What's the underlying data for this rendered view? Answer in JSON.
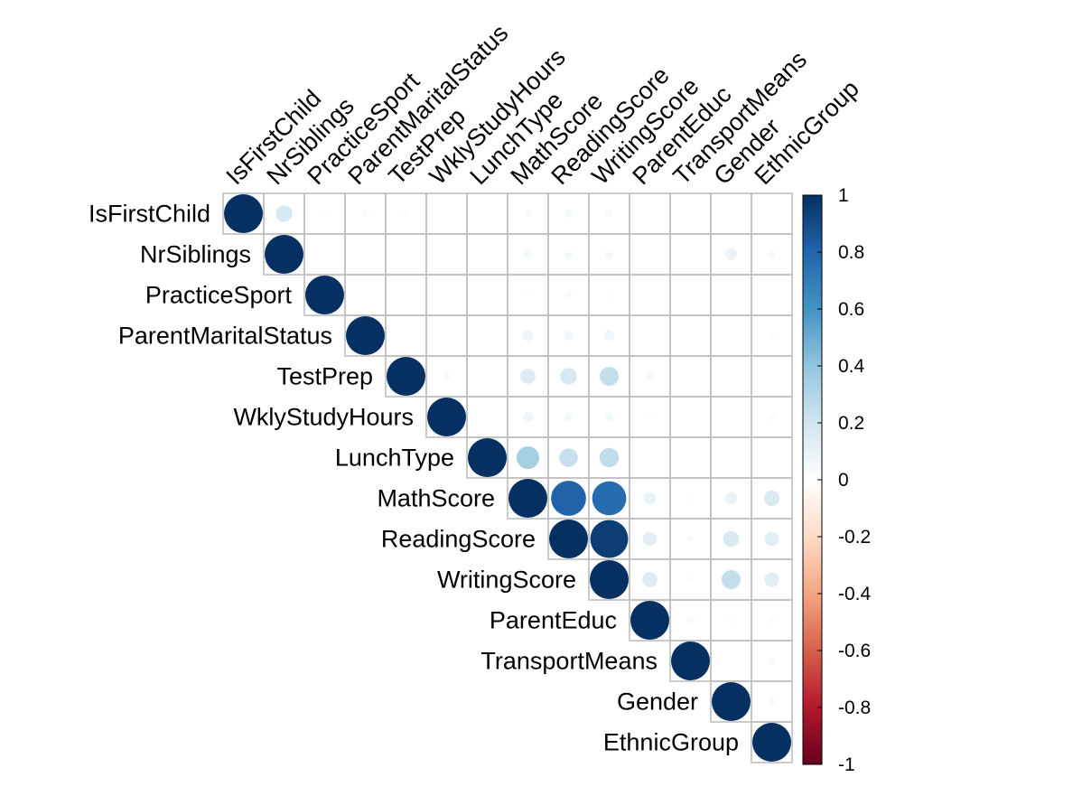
{
  "chart_data": {
    "type": "heatmap",
    "subtype": "correlation-circle-upper",
    "variables": [
      "IsFirstChild",
      "NrSiblings",
      "PracticeSport",
      "ParentMaritalStatus",
      "TestPrep",
      "WklyStudyHours",
      "LunchType",
      "MathScore",
      "ReadingScore",
      "WritingScore",
      "ParentEduc",
      "TransportMeans",
      "Gender",
      "EthnicGroup"
    ],
    "matrix": [
      [
        1,
        0.18,
        0.02,
        0.04,
        0.02,
        0.0,
        0.0,
        0.04,
        0.05,
        0.04,
        0.0,
        0.0,
        0.0,
        0.0
      ],
      [
        0.18,
        1,
        0.0,
        0.0,
        0.0,
        0.01,
        0.0,
        0.05,
        0.05,
        0.05,
        0.0,
        0.01,
        0.09,
        0.04
      ],
      [
        0.02,
        0.0,
        1,
        0.0,
        0.0,
        0.0,
        0.01,
        0.02,
        0.03,
        0.02,
        0.0,
        0.0,
        0.0,
        0.0
      ],
      [
        0.04,
        0.0,
        0.0,
        1,
        0.01,
        0.0,
        0.01,
        0.08,
        0.06,
        0.07,
        0.0,
        0.01,
        0.01,
        0.02
      ],
      [
        0.02,
        0.0,
        0.0,
        0.01,
        1,
        0.04,
        0.0,
        0.15,
        0.18,
        0.24,
        0.05,
        0.0,
        0.0,
        0.0
      ],
      [
        0.0,
        0.01,
        0.0,
        0.0,
        0.04,
        1,
        0.0,
        0.07,
        0.05,
        0.05,
        0.02,
        0.0,
        0.0,
        0.03
      ],
      [
        0.0,
        0.0,
        0.01,
        0.01,
        0.0,
        0.0,
        1,
        0.34,
        0.23,
        0.25,
        0.0,
        0.01,
        0.01,
        0.01
      ],
      [
        0.04,
        0.05,
        0.02,
        0.08,
        0.15,
        0.07,
        0.34,
        1,
        0.81,
        0.77,
        0.1,
        0.02,
        0.1,
        0.16
      ],
      [
        0.05,
        0.05,
        0.03,
        0.06,
        0.18,
        0.05,
        0.23,
        0.81,
        1,
        0.95,
        0.13,
        0.03,
        0.17,
        0.13
      ],
      [
        0.04,
        0.05,
        0.02,
        0.07,
        0.24,
        0.05,
        0.25,
        0.77,
        0.95,
        1,
        0.15,
        0.02,
        0.24,
        0.14
      ],
      [
        0.0,
        0.0,
        0.0,
        0.0,
        0.05,
        0.02,
        0.0,
        0.1,
        0.13,
        0.15,
        1,
        0.04,
        0.02,
        0.03
      ],
      [
        0.0,
        0.01,
        0.0,
        0.01,
        0.0,
        0.0,
        0.01,
        0.02,
        0.03,
        0.02,
        0.04,
        1,
        0.0,
        0.03
      ],
      [
        0.0,
        0.09,
        0.0,
        0.01,
        0.0,
        0.0,
        0.01,
        0.1,
        0.17,
        0.24,
        0.02,
        0.0,
        1,
        0.04
      ],
      [
        0.0,
        0.04,
        0.0,
        0.02,
        0.0,
        0.03,
        0.01,
        0.16,
        0.13,
        0.14,
        0.03,
        0.03,
        0.04,
        1
      ]
    ],
    "colorbar": {
      "ticks": [
        "1",
        "0.8",
        "0.6",
        "0.4",
        "0.2",
        "0",
        "-0.2",
        "-0.4",
        "-0.6",
        "-0.8",
        "-1"
      ],
      "range": [
        -1,
        1
      ],
      "colors_low_to_high": [
        "#67001F",
        "#B2182B",
        "#D6604D",
        "#F4A582",
        "#FDDBC7",
        "#FFFFFF",
        "#D1E5F0",
        "#92C5DE",
        "#4393C3",
        "#2166AC",
        "#053061"
      ]
    },
    "grid_color": "#BEBEBE"
  }
}
